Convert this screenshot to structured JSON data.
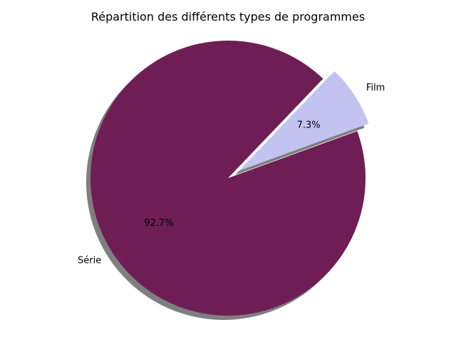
{
  "chart_data": {
    "type": "pie",
    "title": "Répartition des différents types de programmes",
    "slices": [
      {
        "label": "Film",
        "value": 7.3,
        "pct_label": "7.3%",
        "color": "#c3c3f2",
        "exploded": true
      },
      {
        "label": "Série",
        "value": 92.7,
        "pct_label": "92.7%",
        "color": "#6e1e54",
        "exploded": false
      }
    ],
    "start_angle_deg": 20,
    "shadow": true,
    "legend": "none"
  }
}
